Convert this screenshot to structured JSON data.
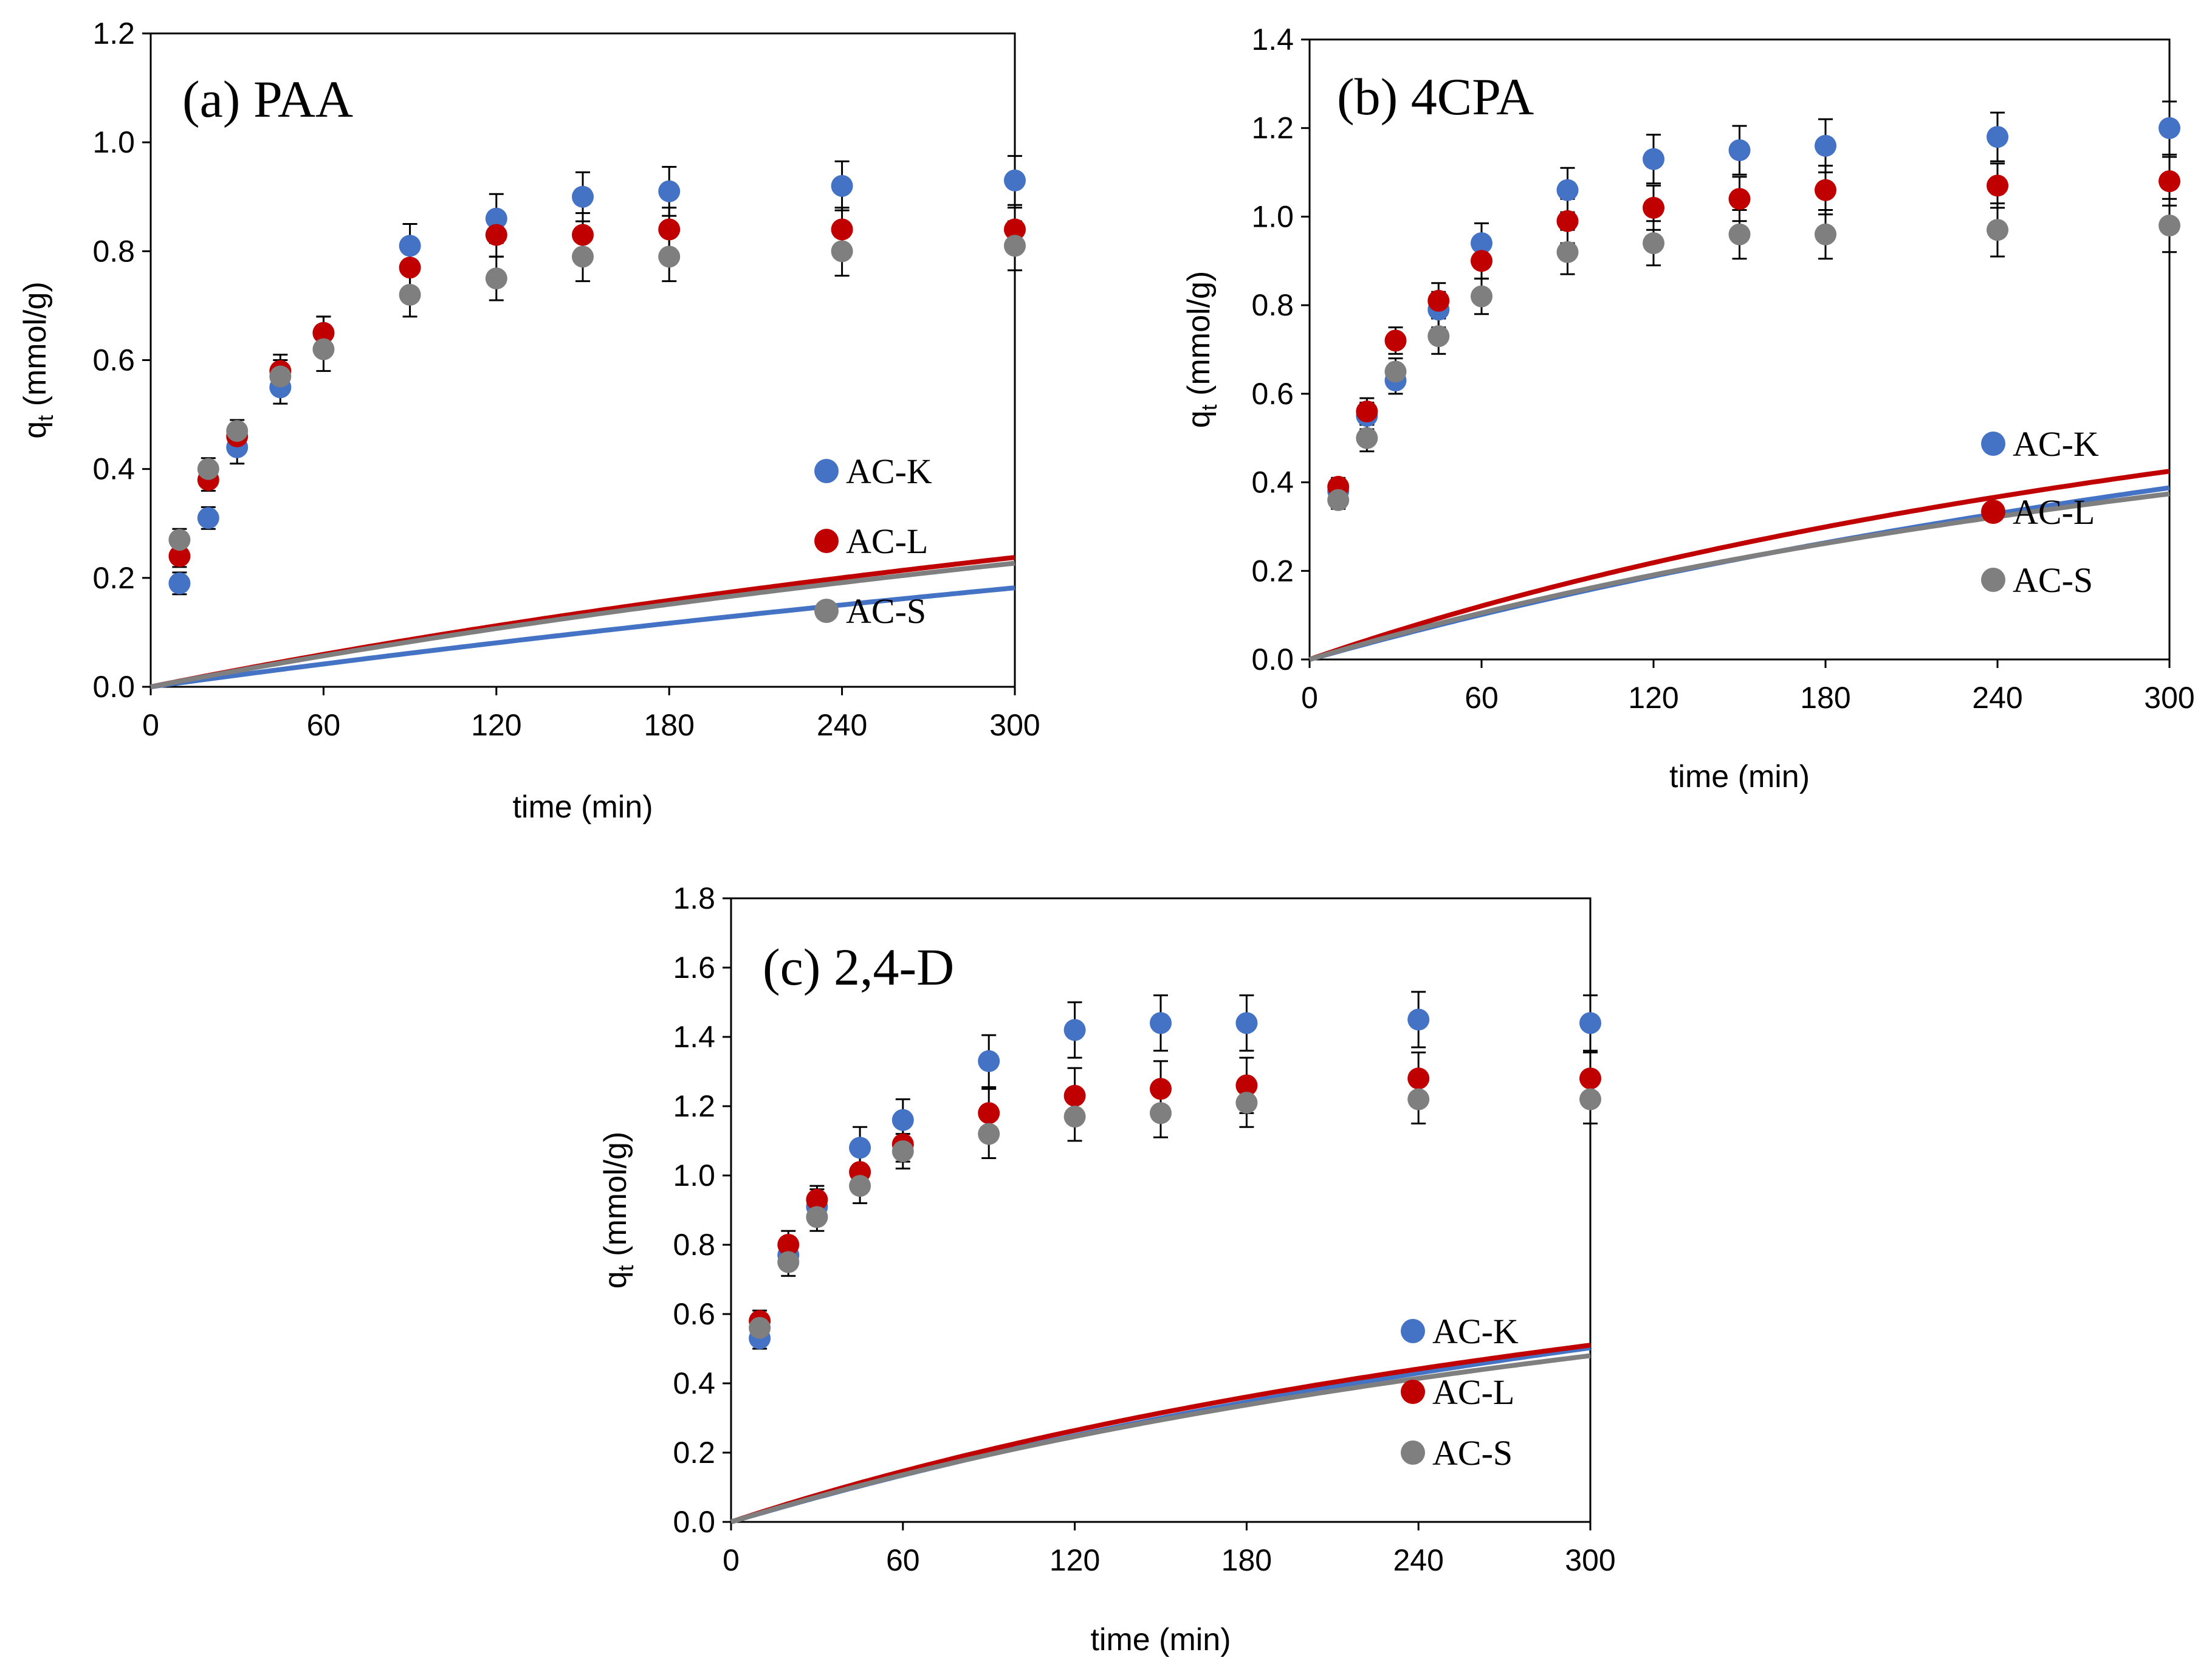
{
  "colors": {
    "AC-K": "#4472c4",
    "AC-L": "#c00000",
    "AC-S": "#7f7f7f"
  },
  "chart_data": [
    {
      "type": "scatter",
      "title": "(a) PAA",
      "xlabel": "time (min)",
      "ylabel_main": "q",
      "ylabel_sub": "t",
      "ylabel_rest": " (mmol/g)",
      "xlim": [
        0,
        300
      ],
      "ylim": [
        0,
        1.2
      ],
      "xticks": [
        0,
        60,
        120,
        180,
        240,
        300
      ],
      "yticks": [
        "0.0",
        "0.2",
        "0.4",
        "0.6",
        "0.8",
        "1.0",
        "1.2"
      ],
      "legend_position": "right-middle",
      "x": [
        10,
        20,
        30,
        45,
        60,
        90,
        120,
        150,
        180,
        240,
        300
      ],
      "series": [
        {
          "name": "AC-K",
          "values": [
            0.19,
            0.31,
            0.44,
            0.55,
            0.65,
            0.81,
            0.86,
            0.9,
            0.91,
            0.92,
            0.93
          ],
          "error": [
            0.02,
            0.02,
            0.03,
            0.03,
            0.03,
            0.04,
            0.045,
            0.045,
            0.045,
            0.045,
            0.045
          ],
          "fit": {
            "qe": 1.1,
            "k": 0.0006
          }
        },
        {
          "name": "AC-L",
          "values": [
            0.24,
            0.38,
            0.46,
            0.58,
            0.65,
            0.77,
            0.83,
            0.83,
            0.84,
            0.84,
            0.84
          ],
          "error": [
            0.02,
            0.02,
            0.02,
            0.03,
            0.03,
            0.04,
            0.04,
            0.04,
            0.04,
            0.04,
            0.04
          ],
          "fit": {
            "qe": 0.94,
            "k": 0.0012
          }
        },
        {
          "name": "AC-S",
          "values": [
            0.27,
            0.4,
            0.47,
            0.57,
            0.62,
            0.72,
            0.75,
            0.79,
            0.79,
            0.8,
            0.81
          ],
          "error": [
            0.02,
            0.02,
            0.02,
            0.03,
            0.04,
            0.04,
            0.04,
            0.045,
            0.045,
            0.045,
            0.045
          ],
          "fit": {
            "qe": 0.9,
            "k": 0.00125
          }
        }
      ]
    },
    {
      "type": "scatter",
      "title": "(b) 4CPA",
      "xlabel": "time (min)",
      "ylabel_main": "q",
      "ylabel_sub": "t",
      "ylabel_rest": " (mmol/g)",
      "xlim": [
        0,
        300
      ],
      "ylim": [
        0,
        1.4
      ],
      "xticks": [
        0,
        60,
        120,
        180,
        240,
        300
      ],
      "yticks": [
        "0.0",
        "0.2",
        "0.4",
        "0.6",
        "0.8",
        "1.0",
        "1.2",
        "1.4"
      ],
      "legend_position": "right-middle",
      "x": [
        10,
        20,
        30,
        45,
        60,
        90,
        120,
        150,
        180,
        240,
        300
      ],
      "series": [
        {
          "name": "AC-K",
          "values": [
            0.38,
            0.55,
            0.63,
            0.79,
            0.94,
            1.06,
            1.13,
            1.15,
            1.16,
            1.18,
            1.2
          ],
          "error": [
            0.02,
            0.03,
            0.03,
            0.04,
            0.045,
            0.05,
            0.055,
            0.055,
            0.06,
            0.055,
            0.06
          ],
          "fit": {
            "qe": 1.32,
            "k": 0.00105
          }
        },
        {
          "name": "AC-L",
          "values": [
            0.39,
            0.56,
            0.72,
            0.81,
            0.9,
            0.99,
            1.02,
            1.04,
            1.06,
            1.07,
            1.08
          ],
          "error": [
            0.02,
            0.03,
            0.03,
            0.04,
            0.04,
            0.05,
            0.05,
            0.05,
            0.055,
            0.05,
            0.055
          ],
          "fit": {
            "qe": 1.15,
            "k": 0.0017
          }
        },
        {
          "name": "AC-S",
          "values": [
            0.36,
            0.5,
            0.65,
            0.73,
            0.82,
            0.92,
            0.94,
            0.96,
            0.96,
            0.97,
            0.98
          ],
          "error": [
            0.02,
            0.03,
            0.03,
            0.04,
            0.04,
            0.05,
            0.05,
            0.055,
            0.055,
            0.06,
            0.06
          ],
          "fit": {
            "qe": 1.04,
            "k": 0.0018
          }
        }
      ]
    },
    {
      "type": "scatter",
      "title": "(c) 2,4-D",
      "xlabel": "time (min)",
      "ylabel_main": "q",
      "ylabel_sub": "t",
      "ylabel_rest": " (mmol/g)",
      "xlim": [
        0,
        300
      ],
      "ylim": [
        0,
        1.8
      ],
      "xticks": [
        0,
        60,
        120,
        180,
        240,
        300
      ],
      "yticks": [
        "0.0",
        "0.2",
        "0.4",
        "0.6",
        "0.8",
        "1.0",
        "1.2",
        "1.4",
        "1.6",
        "1.8"
      ],
      "legend_position": "right-bottom",
      "x": [
        10,
        20,
        30,
        45,
        60,
        90,
        120,
        150,
        180,
        240,
        300
      ],
      "series": [
        {
          "name": "AC-K",
          "values": [
            0.53,
            0.77,
            0.91,
            1.08,
            1.16,
            1.33,
            1.42,
            1.44,
            1.44,
            1.45,
            1.44
          ],
          "error": [
            0.03,
            0.04,
            0.05,
            0.06,
            0.06,
            0.075,
            0.08,
            0.08,
            0.08,
            0.08,
            0.08
          ],
          "fit": {
            "qe": 1.57,
            "k": 0.001
          }
        },
        {
          "name": "AC-L",
          "values": [
            0.58,
            0.8,
            0.93,
            1.01,
            1.09,
            1.18,
            1.23,
            1.25,
            1.26,
            1.28,
            1.28
          ],
          "error": [
            0.03,
            0.04,
            0.04,
            0.05,
            0.05,
            0.07,
            0.08,
            0.08,
            0.08,
            0.075,
            0.075
          ],
          "fit": {
            "qe": 1.35,
            "k": 0.0015
          }
        },
        {
          "name": "AC-S",
          "values": [
            0.56,
            0.75,
            0.88,
            0.97,
            1.07,
            1.12,
            1.17,
            1.18,
            1.21,
            1.22,
            1.22
          ],
          "error": [
            0.03,
            0.04,
            0.04,
            0.05,
            0.05,
            0.07,
            0.07,
            0.07,
            0.07,
            0.07,
            0.07
          ],
          "fit": {
            "qe": 1.3,
            "k": 0.0015
          }
        }
      ]
    }
  ]
}
